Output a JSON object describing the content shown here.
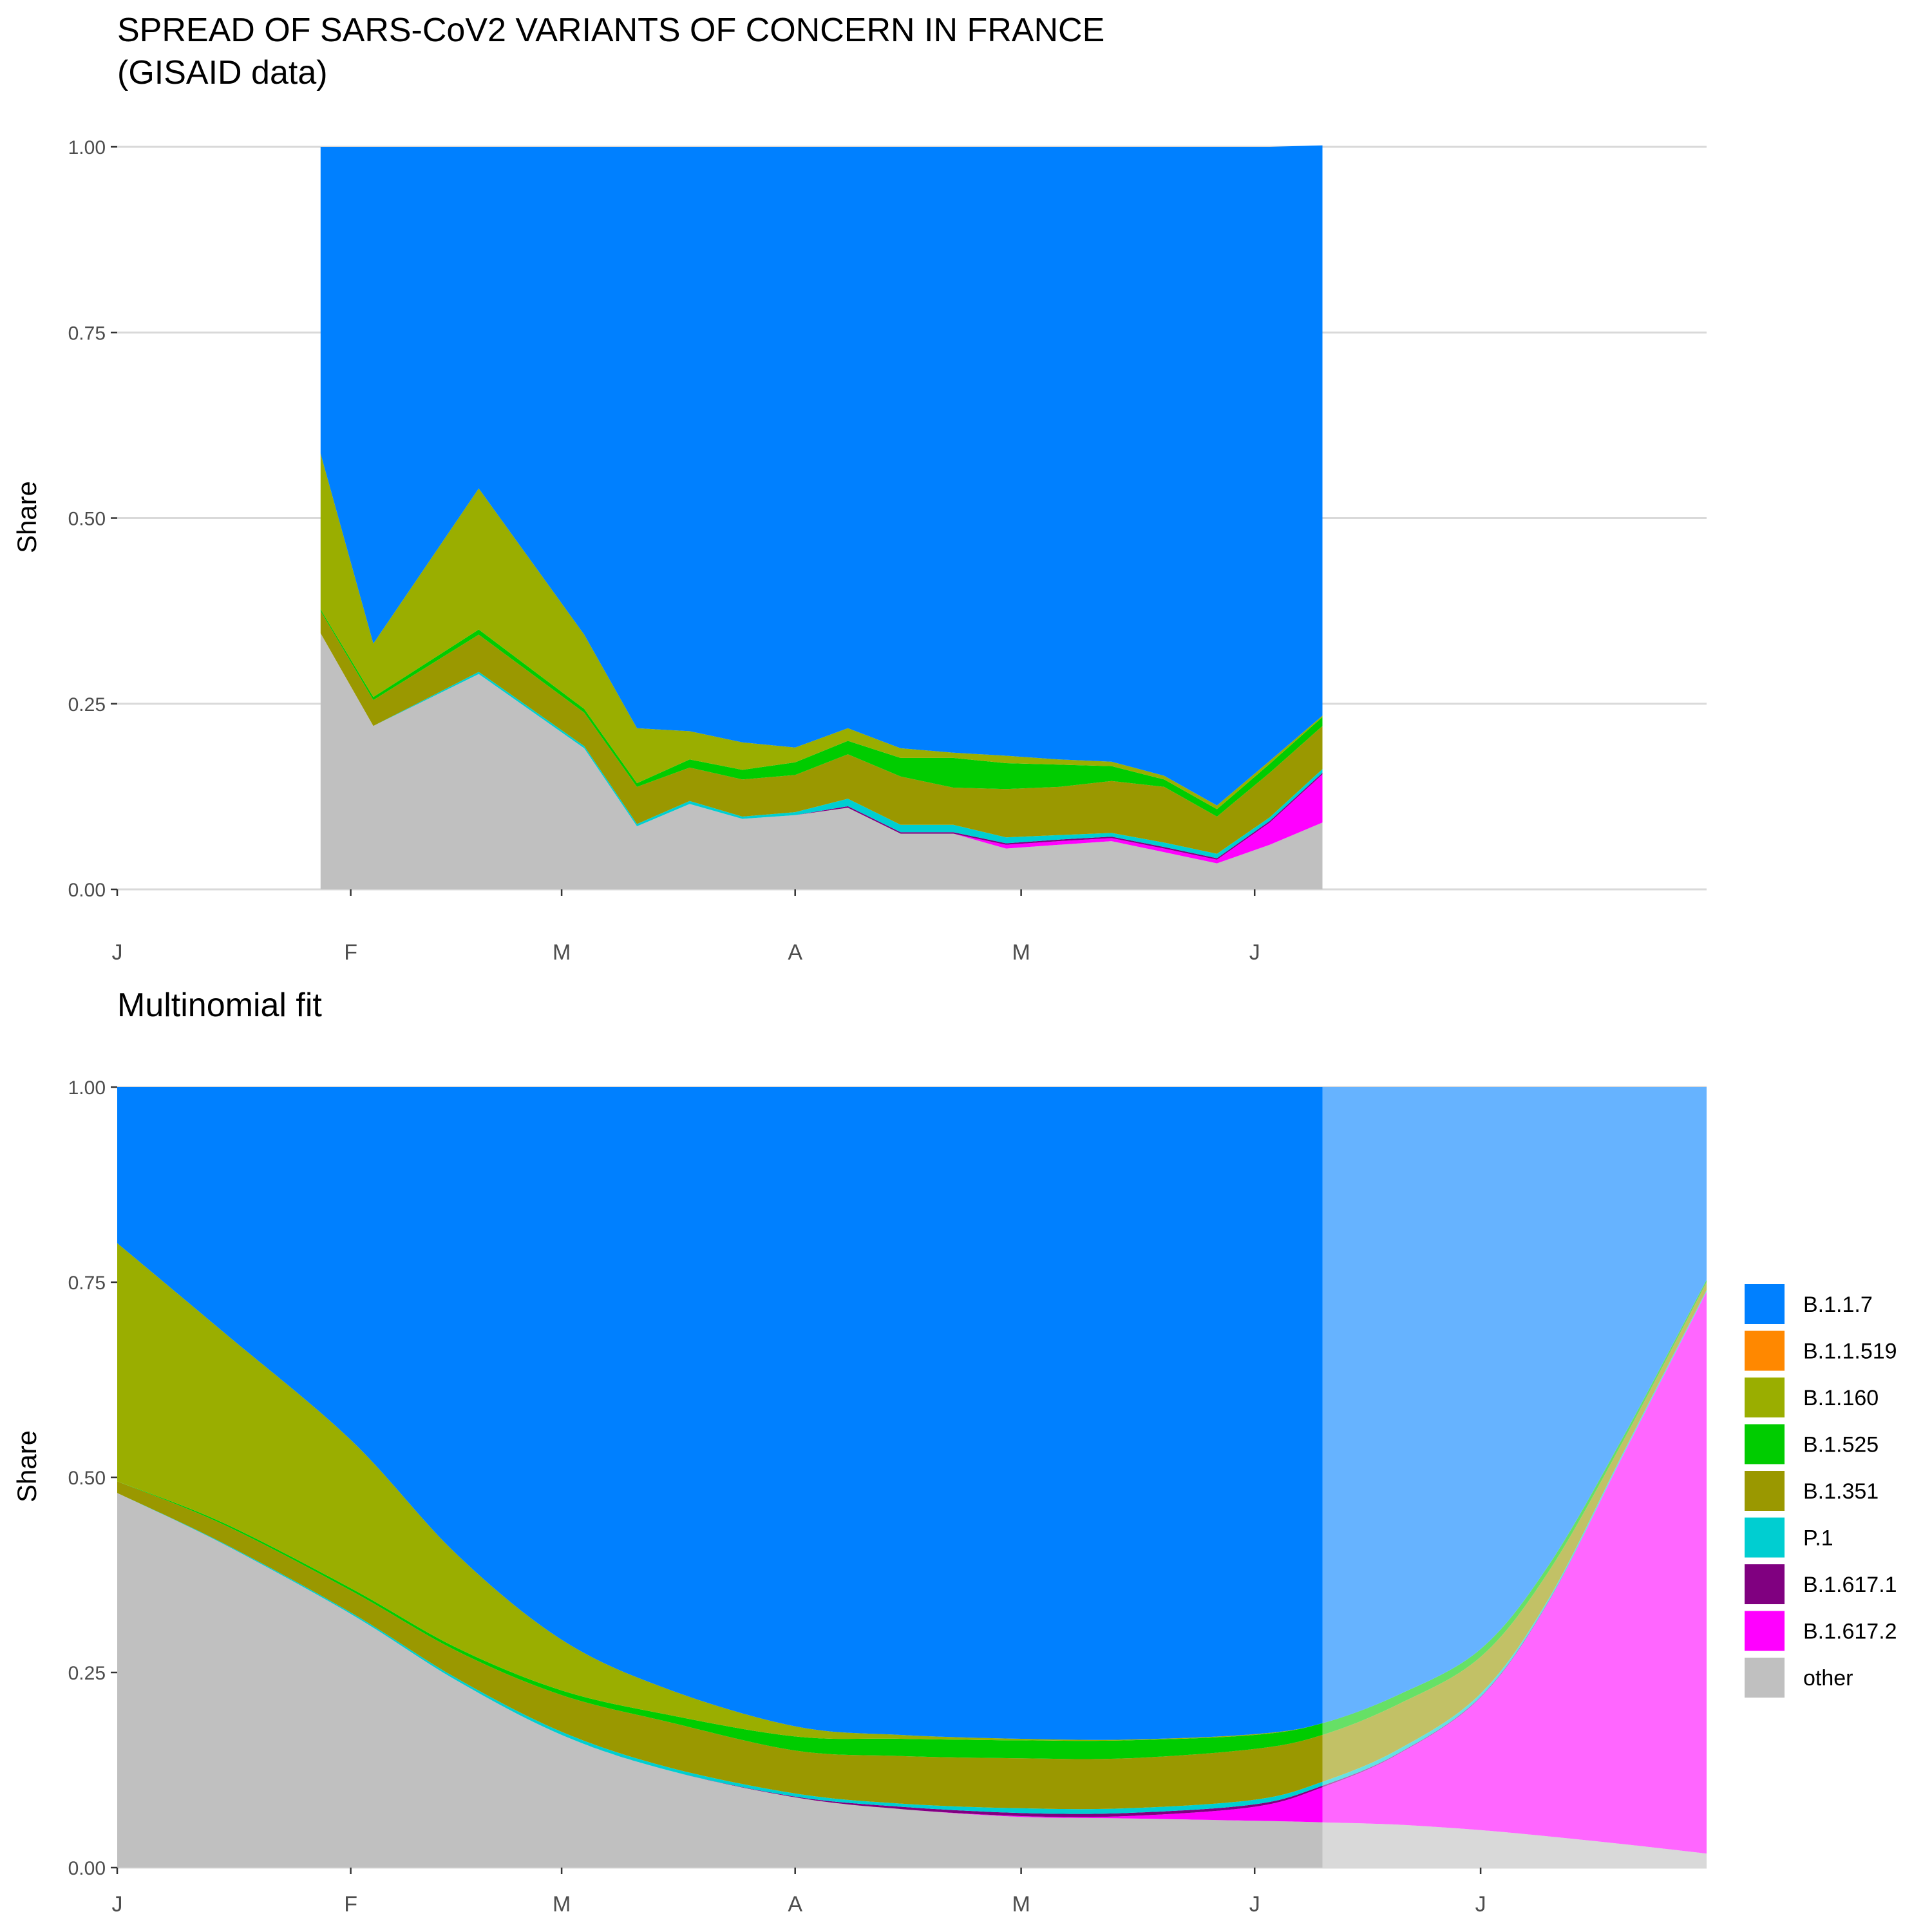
{
  "chart_data": [
    {
      "type": "area",
      "stacked": true,
      "title": "SPREAD OF SARS-CoV2 VARIANTS OF CONCERN IN FRANCE",
      "subtitle": "(GISAID data)",
      "xlabel": "",
      "ylabel": "Share",
      "ylim": [
        0,
        1
      ],
      "yticks": [
        "0.00",
        "0.25",
        "0.50",
        "0.75",
        "1.00"
      ],
      "xlim": [
        "2021-01-01",
        "2021-07-31"
      ],
      "xticks": [
        {
          "label": "J",
          "date": "2021-01-01"
        },
        {
          "label": "F",
          "date": "2021-02-01"
        },
        {
          "label": "M",
          "date": "2021-03-01"
        },
        {
          "label": "A",
          "date": "2021-04-01"
        },
        {
          "label": "M",
          "date": "2021-05-01"
        },
        {
          "label": "J",
          "date": "2021-06-01"
        }
      ],
      "grid": "horizontal",
      "x": [
        "2021-01-28",
        "2021-02-04",
        "2021-02-18",
        "2021-03-04",
        "2021-03-11",
        "2021-03-18",
        "2021-03-25",
        "2021-04-01",
        "2021-04-08",
        "2021-04-15",
        "2021-04-22",
        "2021-04-29",
        "2021-05-06",
        "2021-05-13",
        "2021-05-20",
        "2021-05-27",
        "2021-06-03",
        "2021-06-10"
      ],
      "series": [
        {
          "name": "other",
          "values": [
            0.345,
            0.22,
            0.29,
            0.19,
            0.085,
            0.115,
            0.095,
            0.1,
            0.11,
            0.075,
            0.075,
            0.055,
            0.06,
            0.065,
            0.05,
            0.035,
            0.06,
            0.09
          ]
        },
        {
          "name": "B.1.617.2",
          "values": [
            0,
            0,
            0,
            0,
            0,
            0,
            0,
            0,
            0,
            0,
            0,
            0.005,
            0.005,
            0.004,
            0.005,
            0.005,
            0.03,
            0.065
          ]
        },
        {
          "name": "B.1.617.1",
          "values": [
            0,
            0,
            0,
            0,
            0,
            0,
            0,
            0,
            0.002,
            0.002,
            0.002,
            0.002,
            0.002,
            0.002,
            0.002,
            0.002,
            0.002,
            0.002
          ]
        },
        {
          "name": "P.1",
          "values": [
            0,
            0,
            0.003,
            0.003,
            0.003,
            0.004,
            0.003,
            0.004,
            0.01,
            0.01,
            0.01,
            0.008,
            0.006,
            0.005,
            0.006,
            0.006,
            0.005,
            0.005
          ]
        },
        {
          "name": "B.1.351",
          "values": [
            0.03,
            0.035,
            0.05,
            0.045,
            0.05,
            0.045,
            0.05,
            0.05,
            0.06,
            0.065,
            0.05,
            0.065,
            0.065,
            0.07,
            0.075,
            0.05,
            0.06,
            0.058
          ]
        },
        {
          "name": "B.1.525",
          "values": [
            0.002,
            0.004,
            0.007,
            0.005,
            0.005,
            0.011,
            0.013,
            0.017,
            0.018,
            0.025,
            0.04,
            0.035,
            0.03,
            0.02,
            0.01,
            0.01,
            0.012,
            0.012
          ]
        },
        {
          "name": "B.1.160",
          "values": [
            0.21,
            0.072,
            0.19,
            0.1,
            0.074,
            0.038,
            0.037,
            0.02,
            0.017,
            0.013,
            0.007,
            0.01,
            0.007,
            0.006,
            0.005,
            0.005,
            0.004,
            0.002
          ]
        },
        {
          "name": "B.1.1.519",
          "values": [
            0,
            0,
            0,
            0,
            0,
            0,
            0,
            0,
            0,
            0,
            0,
            0,
            0,
            0,
            0,
            0,
            0,
            0
          ]
        },
        {
          "name": "B.1.1.7",
          "values": [
            0.413,
            0.669,
            0.46,
            0.657,
            0.783,
            0.787,
            0.802,
            0.809,
            0.783,
            0.81,
            0.816,
            0.82,
            0.825,
            0.828,
            0.847,
            0.887,
            0.827,
            0.768
          ]
        }
      ]
    },
    {
      "type": "area",
      "stacked": true,
      "title": "Multinomial fit",
      "xlabel": "",
      "ylabel": "Share",
      "ylim": [
        0,
        1
      ],
      "yticks": [
        "0.00",
        "0.25",
        "0.50",
        "0.75",
        "1.00"
      ],
      "xlim": [
        "2021-01-01",
        "2021-07-31"
      ],
      "xticks": [
        {
          "label": "J",
          "date": "2021-01-01"
        },
        {
          "label": "F",
          "date": "2021-02-01"
        },
        {
          "label": "M",
          "date": "2021-03-01"
        },
        {
          "label": "A",
          "date": "2021-04-01"
        },
        {
          "label": "M",
          "date": "2021-05-01"
        },
        {
          "label": "J",
          "date": "2021-06-01"
        },
        {
          "label": "J",
          "date": "2021-07-01"
        }
      ],
      "grid": "horizontal",
      "forecast_from": "2021-06-10",
      "x": [
        "2021-01-01",
        "2021-01-15",
        "2021-02-01",
        "2021-02-15",
        "2021-03-01",
        "2021-03-15",
        "2021-04-01",
        "2021-04-15",
        "2021-05-01",
        "2021-05-15",
        "2021-06-01",
        "2021-06-10",
        "2021-06-20",
        "2021-07-01",
        "2021-07-10",
        "2021-07-20",
        "2021-07-31"
      ],
      "series": [
        {
          "name": "other",
          "values": [
            0.48,
            0.415,
            0.325,
            0.24,
            0.17,
            0.125,
            0.09,
            0.075,
            0.065,
            0.063,
            0.06,
            0.058,
            0.055,
            0.048,
            0.04,
            0.03,
            0.018
          ]
        },
        {
          "name": "B.1.617.2",
          "values": [
            0,
            0,
            0,
            0,
            0,
            0,
            0,
            0,
            0.001,
            0.003,
            0.018,
            0.045,
            0.09,
            0.17,
            0.3,
            0.5,
            0.72
          ]
        },
        {
          "name": "B.1.617.1",
          "values": [
            0,
            0,
            0,
            0,
            0,
            0,
            0.001,
            0.003,
            0.004,
            0.004,
            0.003,
            0.002,
            0.001,
            0.001,
            0.001,
            0,
            0
          ]
        },
        {
          "name": "P.1",
          "values": [
            0,
            0.001,
            0.002,
            0.003,
            0.004,
            0.004,
            0.004,
            0.004,
            0.006,
            0.006,
            0.006,
            0.005,
            0.005,
            0.004,
            0.003,
            0.003,
            0.002
          ]
        },
        {
          "name": "B.1.351",
          "values": [
            0.015,
            0.024,
            0.028,
            0.035,
            0.047,
            0.058,
            0.055,
            0.061,
            0.064,
            0.064,
            0.065,
            0.06,
            0.058,
            0.047,
            0.035,
            0.015,
            0.01
          ]
        },
        {
          "name": "B.1.525",
          "values": [
            0,
            0.002,
            0.003,
            0.004,
            0.006,
            0.009,
            0.018,
            0.022,
            0.023,
            0.023,
            0.018,
            0.015,
            0.012,
            0.01,
            0.008,
            0.005,
            0.003
          ]
        },
        {
          "name": "B.1.160",
          "values": [
            0.305,
            0.245,
            0.19,
            0.12,
            0.065,
            0.033,
            0.013,
            0.005,
            0.002,
            0.001,
            0.001,
            0,
            0,
            0,
            0,
            0,
            0
          ]
        },
        {
          "name": "B.1.1.519",
          "values": [
            0,
            0,
            0,
            0,
            0,
            0,
            0,
            0,
            0,
            0,
            0,
            0,
            0,
            0,
            0,
            0,
            0
          ]
        },
        {
          "name": "B.1.1.7",
          "values": [
            0.2,
            0.313,
            0.452,
            0.598,
            0.708,
            0.771,
            0.819,
            0.83,
            0.835,
            0.836,
            0.829,
            0.815,
            0.779,
            0.72,
            0.613,
            0.447,
            0.247
          ]
        }
      ]
    }
  ],
  "legend": {
    "position": "right",
    "items": [
      {
        "name": "B.1.1.7",
        "color": "#0080FF"
      },
      {
        "name": "B.1.1.519",
        "color": "#FF8800"
      },
      {
        "name": "B.1.160",
        "color": "#9AAE00"
      },
      {
        "name": "B.1.525",
        "color": "#00CC00"
      },
      {
        "name": "B.1.351",
        "color": "#9A9800"
      },
      {
        "name": "P.1",
        "color": "#00CED1"
      },
      {
        "name": "B.1.617.1",
        "color": "#800080"
      },
      {
        "name": "B.1.617.2",
        "color": "#FF00FF"
      },
      {
        "name": "other",
        "color": "#C0C0C0"
      }
    ]
  }
}
